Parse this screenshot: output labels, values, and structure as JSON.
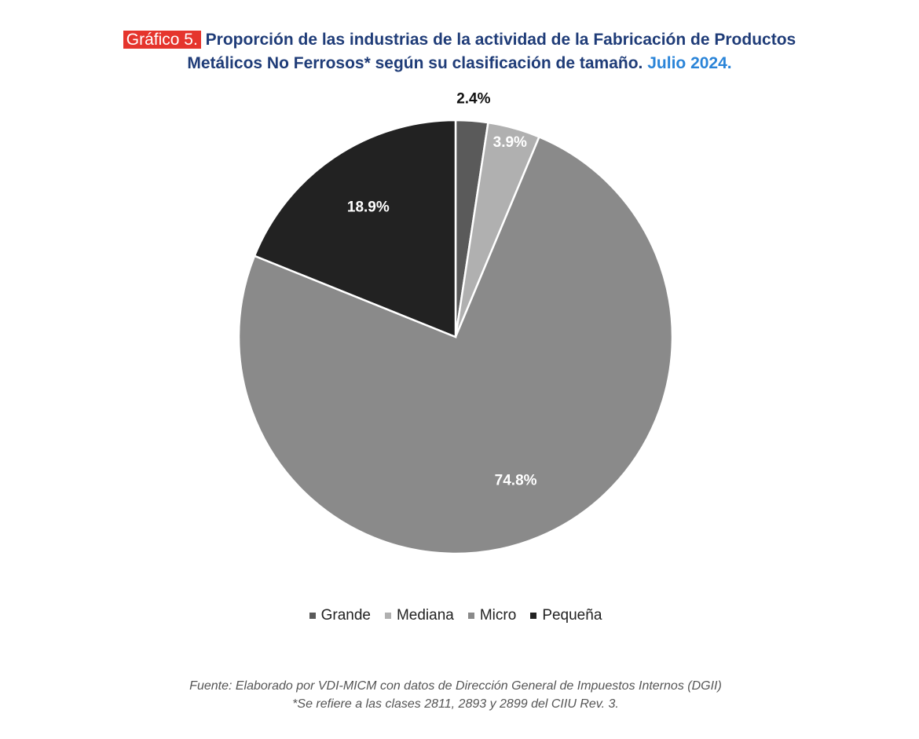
{
  "header": {
    "label": "Gráfico 5.",
    "title_line1": "Proporción de las industrias de la actividad de la Fabricación de Productos",
    "title_line2": "Metálicos No Ferrosos* según su clasificación de tamaño.",
    "period": "Julio 2024."
  },
  "chart_data": {
    "type": "pie",
    "categories": [
      "Grande",
      "Mediana",
      "Micro",
      "Pequeña"
    ],
    "values": [
      2.4,
      3.9,
      74.8,
      18.9
    ],
    "labels": [
      "2.4%",
      "3.9%",
      "74.8%",
      "18.9%"
    ],
    "colors": [
      "#5a5a5a",
      "#b0b0b0",
      "#8a8a8a",
      "#222222"
    ],
    "label_colors": [
      "#111111",
      "#ffffff",
      "#ffffff",
      "#ffffff"
    ],
    "legend_position": "bottom"
  },
  "footer": {
    "source": "Fuente: Elaborado por VDI-MICM con datos de Dirección General de Impuestos Internos (DGII)",
    "note": "*Se refiere a las clases 2811, 2893 y 2899 del CIIU Rev. 3."
  }
}
